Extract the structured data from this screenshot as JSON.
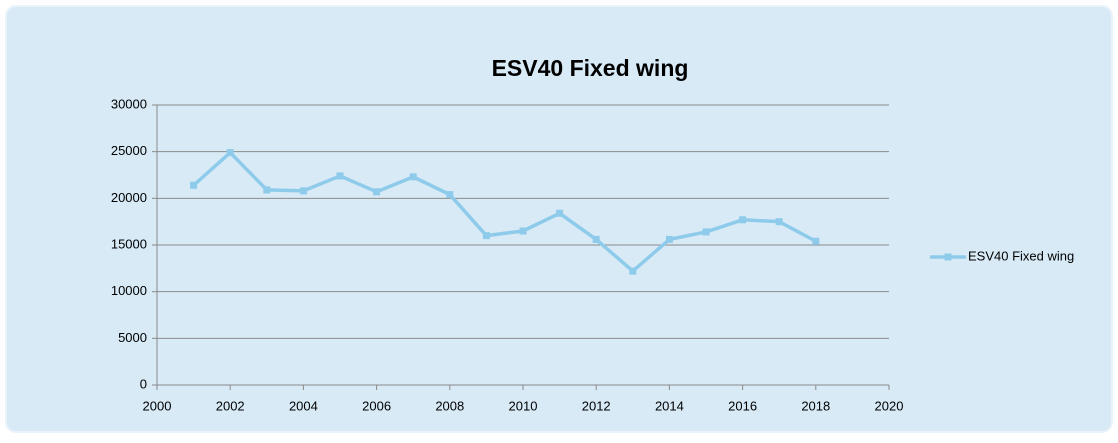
{
  "chart_data": {
    "type": "line",
    "title": "ESV40 Fixed wing",
    "x": [
      2001,
      2002,
      2003,
      2004,
      2005,
      2006,
      2007,
      2008,
      2009,
      2010,
      2011,
      2012,
      2013,
      2014,
      2015,
      2016,
      2017,
      2018
    ],
    "series": [
      {
        "name": "ESV40 Fixed wing",
        "color": "#8ecbeb",
        "values": [
          21400,
          24900,
          20900,
          20800,
          22400,
          20700,
          22300,
          20400,
          16000,
          16500,
          18400,
          15600,
          12200,
          15600,
          16400,
          17700,
          17500,
          15400
        ]
      }
    ],
    "xlim": [
      2000,
      2020
    ],
    "xticks": [
      2000,
      2002,
      2004,
      2006,
      2008,
      2010,
      2012,
      2014,
      2016,
      2018,
      2020
    ],
    "ylim": [
      0,
      30000
    ],
    "yticks": [
      0,
      5000,
      10000,
      15000,
      20000,
      25000,
      30000
    ],
    "grid": true,
    "legend": "right"
  }
}
